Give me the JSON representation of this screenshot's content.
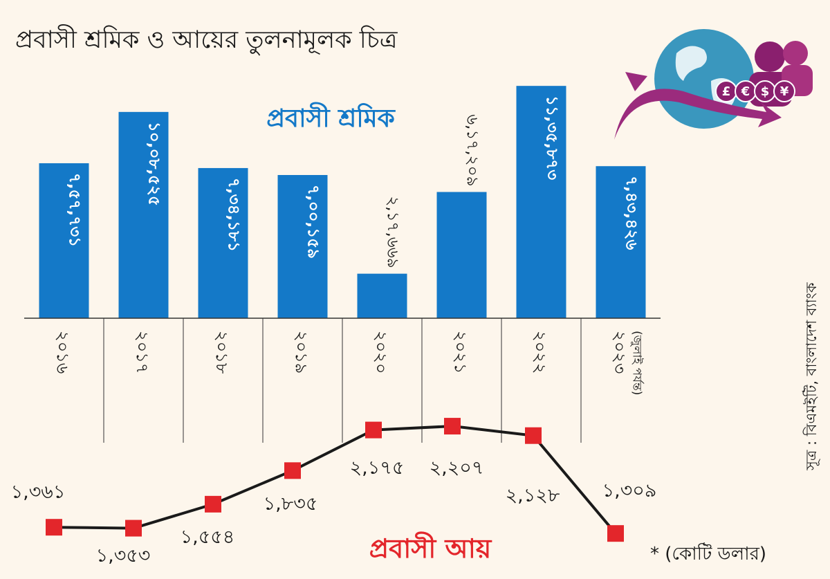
{
  "title": "প্রবাসী শ্রমিক ও আয়ের তুলনামূলক চিত্র",
  "source": "সূত্র : বিএমইটি, বাংলাদেশ ব্যাংক",
  "unit_note": "* (কোটি ডলার)",
  "colors": {
    "bar": "#1479c8",
    "line": "#1a1a1a",
    "marker": "#e3262b",
    "bar_title": "#1479c8",
    "line_title": "#e3262b",
    "background": "#fdf6ec"
  },
  "chart_data": [
    {
      "type": "bar",
      "title": "প্রবাসী শ্রমিক",
      "categories": [
        "২০১৬",
        "২০১৭",
        "২০১৮",
        "২০১৯",
        "২০২০",
        "২০২১",
        "২০২২",
        "২০২৩"
      ],
      "category_notes": [
        "",
        "",
        "",
        "",
        "",
        "",
        "",
        "(জুলাই পর্যন্ত)"
      ],
      "values": [
        757731,
        1008525,
        734181,
        700159,
        217669,
        617209,
        1135873,
        743426
      ],
      "value_labels": [
        "৭,৫৭,৭৩১",
        "১০,০৮,৫২৫",
        "৭,৩৪,১৮১",
        "৭,০০,১৫৯",
        "২,১৭,৬৬৯",
        "৬,১৭,২০৯",
        "১১,৩৫,৮৭৩",
        "৭,৪৩,৪২৬"
      ],
      "ylim": [
        0,
        1150000
      ]
    },
    {
      "type": "line",
      "title": "প্রবাসী আয়",
      "categories": [
        "২০১৬",
        "২০১৭",
        "২০১৮",
        "২০১৯",
        "২০২০",
        "২০২১",
        "২০২২",
        "২০২৩"
      ],
      "values": [
        1361,
        1353,
        1554,
        1835,
        2175,
        2207,
        2128,
        1309
      ],
      "value_labels": [
        "১,৩৬১",
        "১,৩৫৩",
        "১,৫৫৪",
        "১,৮৩৫",
        "২,১৭৫",
        "২,২০৭",
        "২,১২৮",
        "১,৩০৯"
      ]
    }
  ]
}
